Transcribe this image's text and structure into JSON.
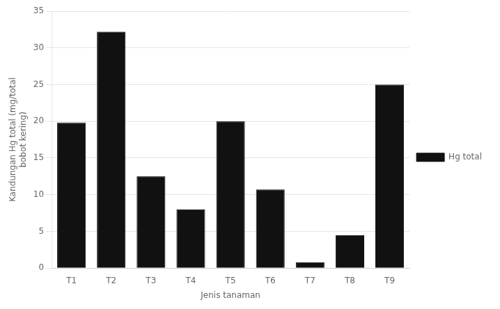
{
  "chart_data": {
    "type": "bar",
    "categories": [
      "T1",
      "T2",
      "T3",
      "T4",
      "T5",
      "T6",
      "T7",
      "T8",
      "T9"
    ],
    "series": [
      {
        "name": "Hg total",
        "color": "#111111",
        "values": [
          19.8,
          32.2,
          12.5,
          8.0,
          20.0,
          10.7,
          0.8,
          4.5,
          25.0
        ]
      }
    ],
    "xlabel": "Jenis tanaman",
    "ylabel": "Kandungan Hg total (mg/total\nbobot kering)",
    "ylim": [
      0,
      35
    ],
    "yticks": [
      0,
      5,
      10,
      15,
      20,
      25,
      30,
      35
    ],
    "grid": true,
    "legend": "right"
  }
}
